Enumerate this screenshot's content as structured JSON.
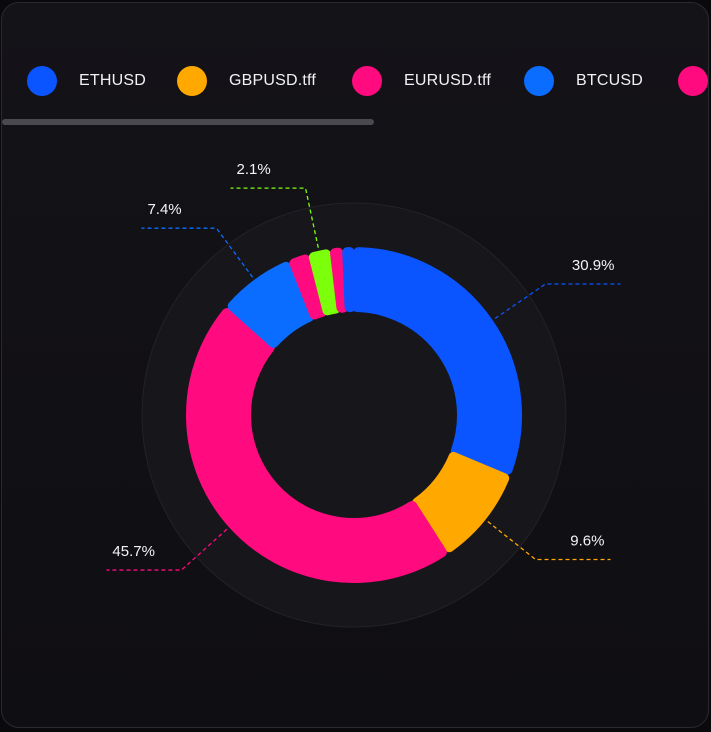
{
  "legend": [
    {
      "label": "ETHUSD",
      "color": "#0a55ff"
    },
    {
      "label": "GBPUSD.tff",
      "color": "#ffa800"
    },
    {
      "label": "EURUSD.tff",
      "color": "#ff0a7f"
    },
    {
      "label": "BTCUSD",
      "color": "#0a6dff"
    },
    {
      "label": "",
      "color": "#ff0a7f"
    }
  ],
  "chart_data": {
    "type": "pie",
    "variant": "donut",
    "series": [
      {
        "name": "ETHUSD",
        "value": 30.9,
        "label": "30.9%",
        "color": "#0a55ff"
      },
      {
        "name": "GBPUSD.tff",
        "value": 9.6,
        "label": "9.6%",
        "color": "#ffa800"
      },
      {
        "name": "EURUSD.tff",
        "value": 45.7,
        "label": "45.7%",
        "color": "#ff0a7f"
      },
      {
        "name": "BTCUSD",
        "value": 7.4,
        "label": "7.4%",
        "color": "#0a6dff"
      },
      {
        "name": "",
        "value": 2.0,
        "label": "",
        "color": "#ff0a7f"
      },
      {
        "name": "",
        "value": 2.1,
        "label": "2.1%",
        "color": "#7cff0a"
      },
      {
        "name": "",
        "value": 1.2,
        "label": "",
        "color": "#ff0a7f"
      },
      {
        "name": "",
        "value": 1.1,
        "label": "",
        "color": "#0a55ff"
      }
    ]
  }
}
